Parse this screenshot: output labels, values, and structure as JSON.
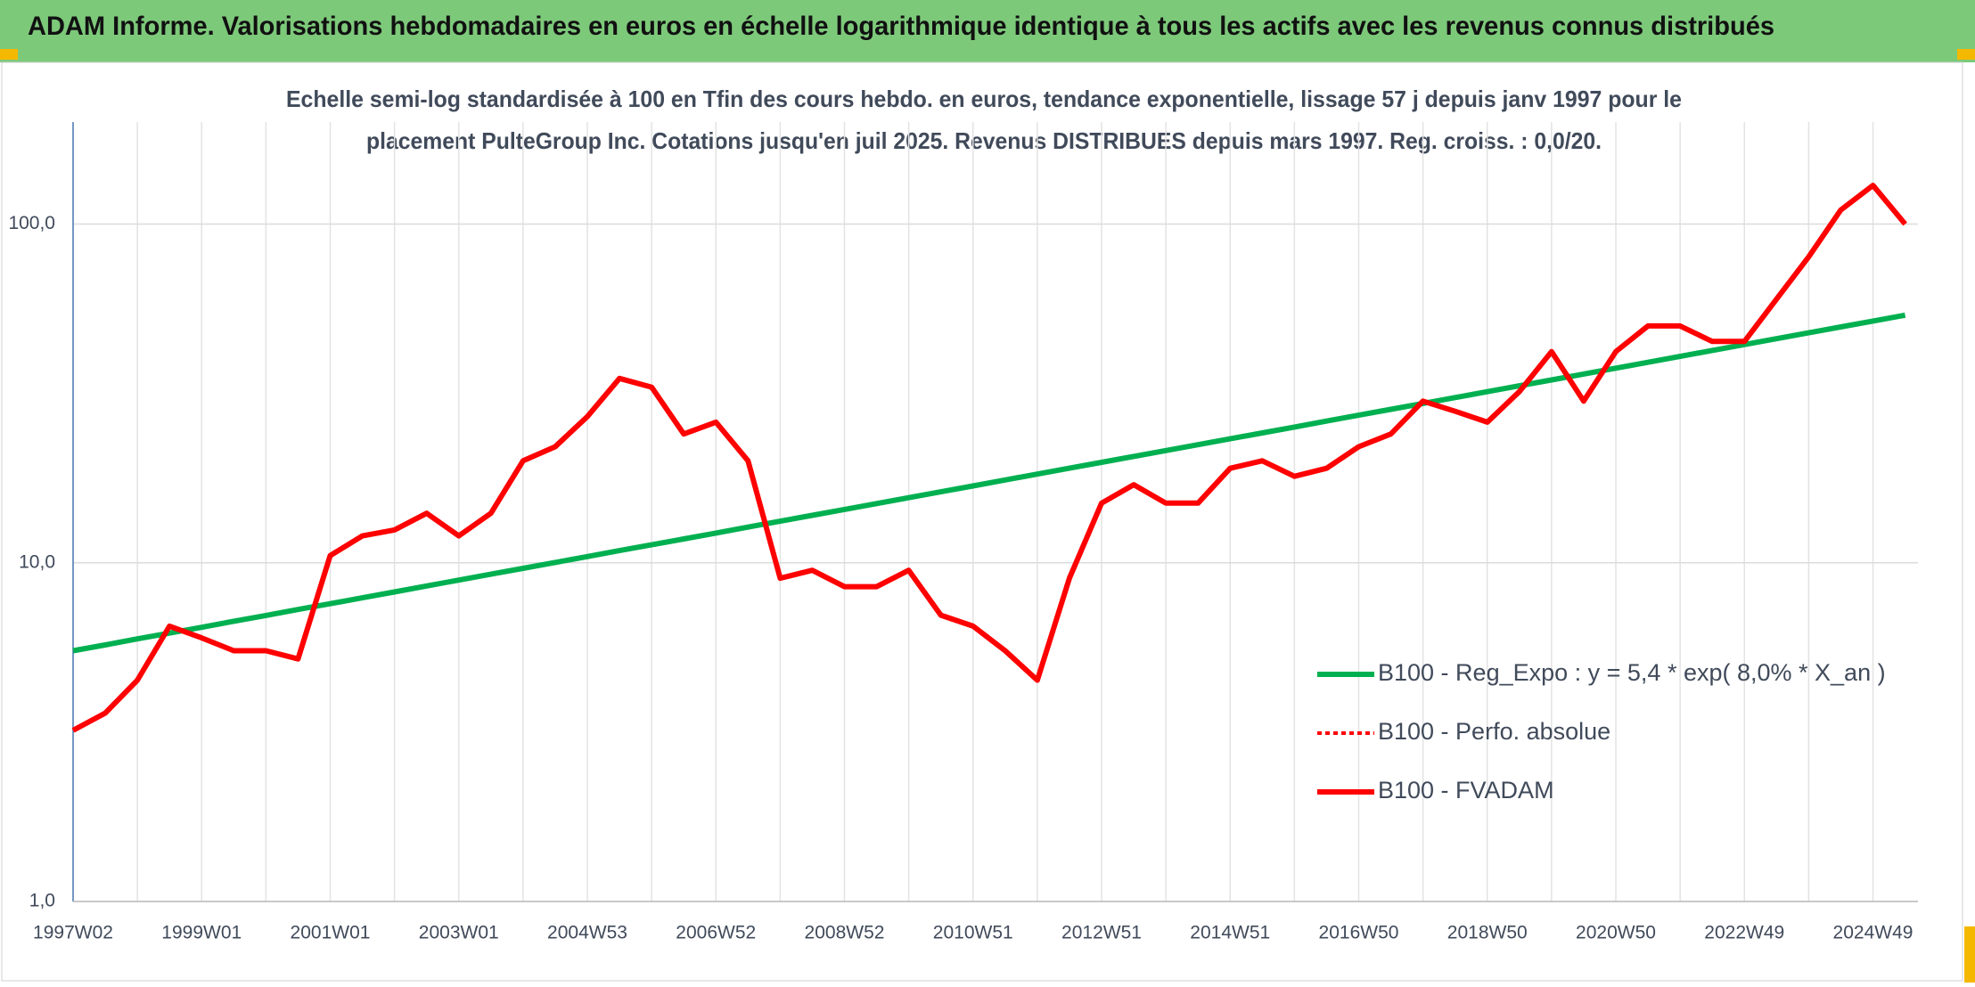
{
  "header": {
    "title": "ADAM Informe. Valorisations hebdomadaires en euros en échelle logarithmique identique à tous les actifs avec les revenus connus distribués"
  },
  "chart_data": {
    "type": "line",
    "subtitle": [
      "Echelle semi-log standardisée à 100 en Tfin des cours hebdo. en euros, tendance exponentielle, lissage 57 j depuis janv 1997 pour le",
      "placement PulteGroup Inc. Cotations jusqu'en juil 2025. Revenus DISTRIBUES depuis mars 1997. Reg. croiss. : 0,0/20."
    ],
    "categories": [
      "1997W02",
      null,
      null,
      null,
      "1999W01",
      null,
      null,
      null,
      "2001W01",
      null,
      null,
      null,
      "2003W01",
      null,
      null,
      null,
      "2004W53",
      null,
      null,
      null,
      "2006W52",
      null,
      null,
      null,
      "2008W52",
      null,
      null,
      null,
      "2010W51",
      null,
      null,
      null,
      "2012W51",
      null,
      null,
      null,
      "2014W51",
      null,
      null,
      null,
      "2016W50",
      null,
      null,
      null,
      "2018W50",
      null,
      null,
      null,
      "2020W50",
      null,
      null,
      null,
      "2022W49",
      null,
      null,
      null,
      "2024W49",
      null
    ],
    "log_scale": true,
    "grid": true,
    "legend": "right",
    "ylim": [
      1,
      200
    ],
    "yticks": [
      {
        "value": 1,
        "label": "1,0"
      },
      {
        "value": 10,
        "label": "10,0"
      },
      {
        "value": 100,
        "label": "100,0"
      }
    ],
    "series": [
      {
        "name": "B100 - Reg_Expo : y = 5,4 * exp( 8,0% *  X_an )",
        "color": "#00b050",
        "style": "solid",
        "values": [
          5.5,
          5.72,
          5.96,
          6.2,
          6.45,
          6.72,
          6.99,
          7.28,
          7.57,
          7.88,
          8.2,
          8.54,
          8.89,
          9.25,
          9.63,
          10.02,
          10.43,
          10.86,
          11.3,
          11.76,
          12.24,
          12.74,
          13.26,
          13.8,
          14.37,
          14.95,
          15.56,
          16.2,
          16.86,
          17.55,
          18.27,
          19.01,
          19.79,
          20.6,
          21.44,
          22.31,
          23.22,
          24.17,
          25.16,
          26.19,
          27.26,
          28.37,
          29.53,
          30.73,
          31.99,
          33.29,
          34.65,
          36.07,
          37.54,
          39.07,
          40.67,
          42.33,
          44.06,
          45.86,
          47.73,
          49.68,
          51.71,
          53.82
        ]
      },
      {
        "name": "B100 - Perfo. absolue",
        "color": "#ff0000",
        "style": "dotted",
        "values": [
          3.2,
          3.6,
          4.5,
          6.5,
          6,
          5.5,
          5.5,
          5.2,
          10.5,
          12,
          12.5,
          14,
          12,
          14,
          20,
          22,
          27,
          35,
          33,
          24,
          26,
          20,
          9,
          9.5,
          8.5,
          8.5,
          9.5,
          7,
          6.5,
          5.5,
          4.5,
          9,
          15,
          17,
          15,
          15,
          19,
          20,
          18,
          19,
          22,
          24,
          30,
          28,
          26,
          32,
          42,
          30,
          42,
          50,
          50,
          45,
          45,
          60,
          80,
          110,
          130,
          100
        ]
      },
      {
        "name": "B100 - FVADAM",
        "color": "#ff0000",
        "style": "solid",
        "values": [
          3.2,
          3.6,
          4.5,
          6.5,
          6,
          5.5,
          5.5,
          5.2,
          10.5,
          12,
          12.5,
          14,
          12,
          14,
          20,
          22,
          27,
          35,
          33,
          24,
          26,
          20,
          9,
          9.5,
          8.5,
          8.5,
          9.5,
          7,
          6.5,
          5.5,
          4.5,
          9,
          15,
          17,
          15,
          15,
          19,
          20,
          18,
          19,
          22,
          24,
          30,
          28,
          26,
          32,
          42,
          30,
          42,
          50,
          50,
          45,
          45,
          60,
          80,
          110,
          130,
          100
        ]
      }
    ]
  }
}
